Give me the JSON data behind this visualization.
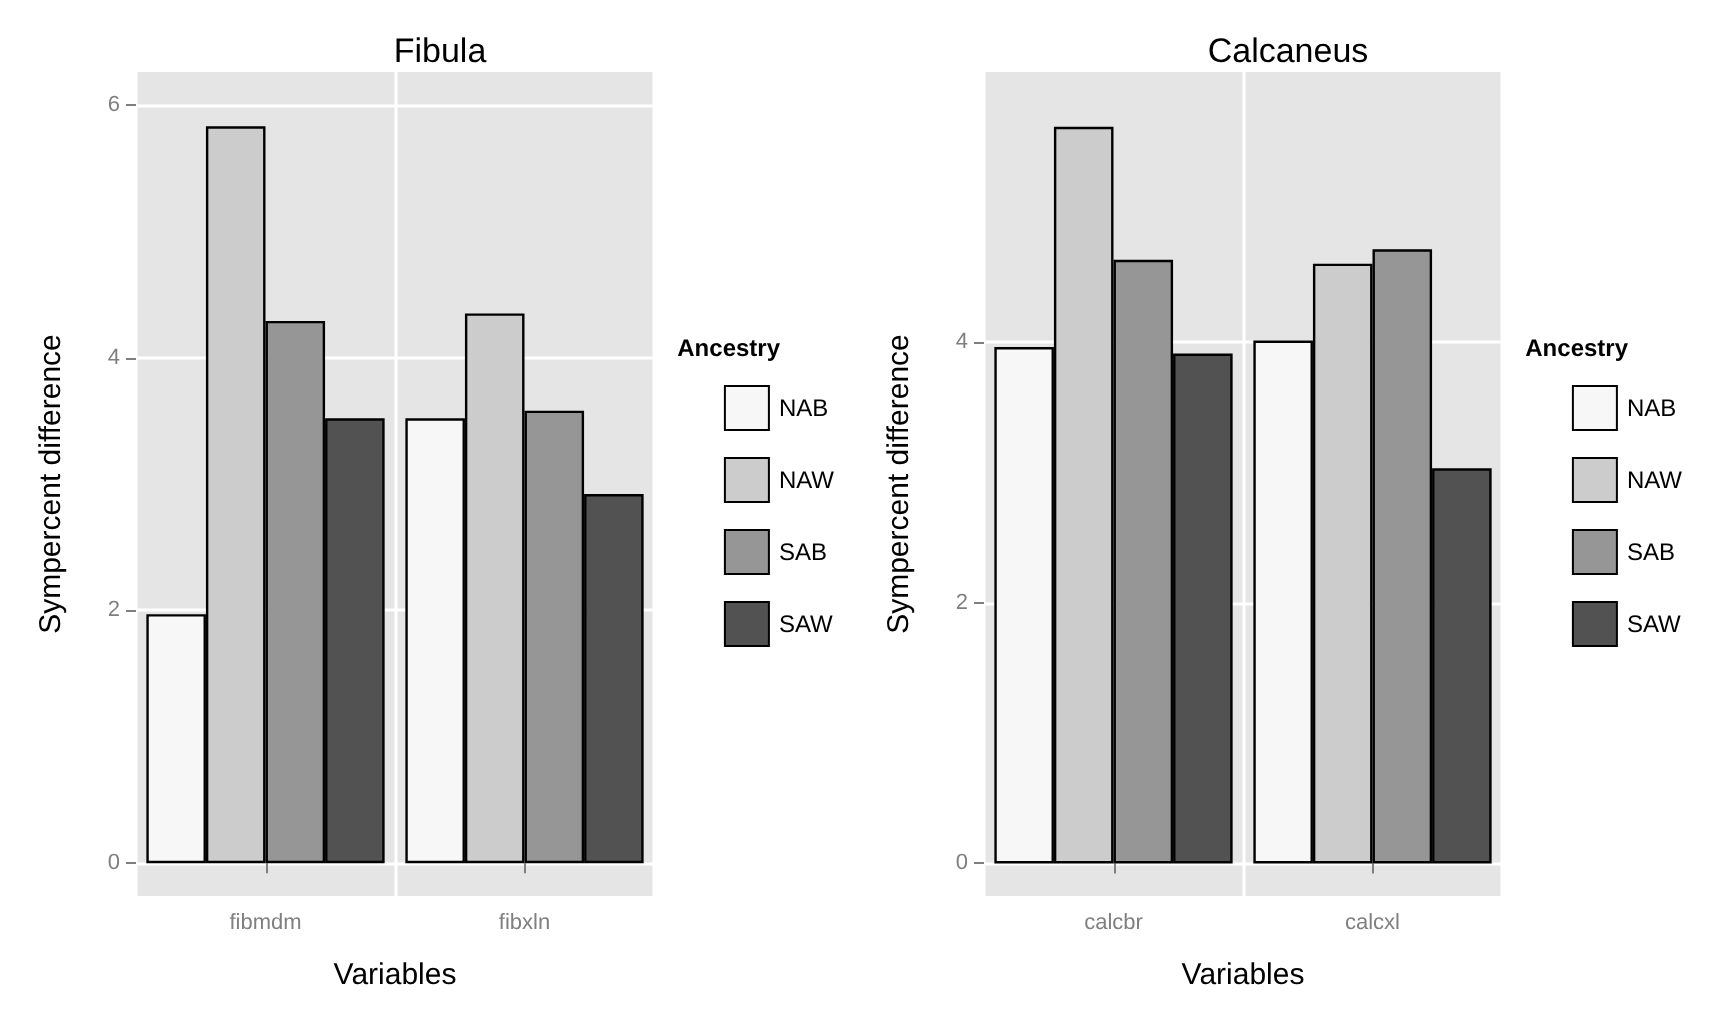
{
  "chart_data": [
    {
      "type": "bar",
      "title": "Fibula",
      "xlabel": "Variables",
      "ylabel": "Sympercent difference",
      "legend_title": "Ancestry",
      "categories": [
        "fibmdm",
        "fibxln"
      ],
      "series": [
        {
          "name": "NAB",
          "color": "#f7f7f7",
          "values": [
            1.97,
            3.52
          ]
        },
        {
          "name": "NAW",
          "color": "#cccccc",
          "values": [
            5.83,
            4.35
          ]
        },
        {
          "name": "SAB",
          "color": "#969696",
          "values": [
            4.29,
            3.58
          ]
        },
        {
          "name": "SAW",
          "color": "#525252",
          "values": [
            3.52,
            2.92
          ]
        }
      ],
      "ylim": [
        -0.26,
        6.26
      ],
      "yticks": [
        0,
        2,
        4,
        6
      ],
      "grid": true,
      "legend": "right"
    },
    {
      "type": "bar",
      "title": "Calcaneus",
      "xlabel": "Variables",
      "ylabel": "Sympercent difference",
      "legend_title": "Ancestry",
      "categories": [
        "calcbr",
        "calcxl"
      ],
      "series": [
        {
          "name": "NAB",
          "color": "#f7f7f7",
          "values": [
            3.96,
            4.01
          ]
        },
        {
          "name": "NAW",
          "color": "#cccccc",
          "values": [
            5.65,
            4.6
          ]
        },
        {
          "name": "SAB",
          "color": "#969696",
          "values": [
            4.63,
            4.71
          ]
        },
        {
          "name": "SAW",
          "color": "#525252",
          "values": [
            3.91,
            3.03
          ]
        }
      ],
      "ylim": [
        -0.25,
        6.07
      ],
      "yticks": [
        0,
        2,
        4
      ],
      "grid": true,
      "legend": "right"
    }
  ]
}
